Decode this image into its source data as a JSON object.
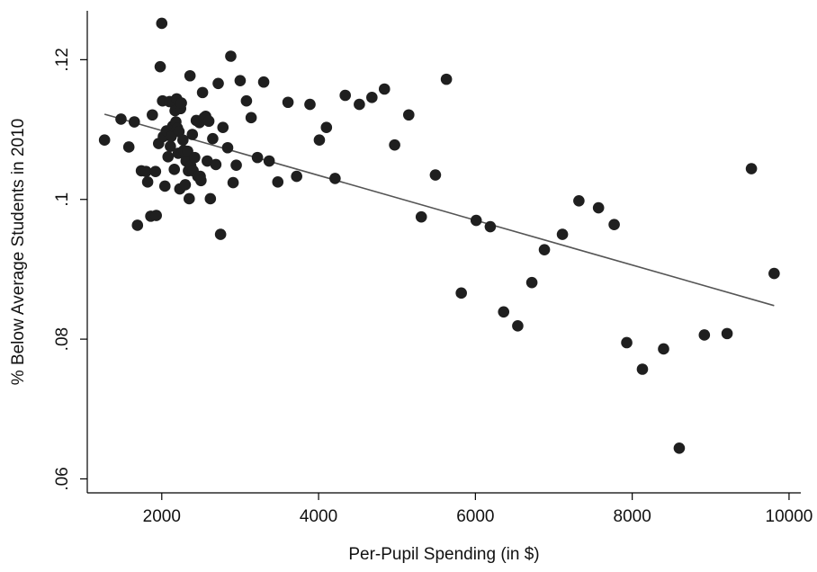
{
  "chart_data": {
    "type": "scatter",
    "title": "",
    "xlabel": "Per-Pupil Spending (in $)",
    "ylabel": "% Below Average Students in 2010",
    "xlim": [
      1050,
      10150
    ],
    "ylim": [
      0.058,
      0.127
    ],
    "x_ticks": [
      2000,
      4000,
      6000,
      8000,
      10000
    ],
    "x_tick_labels": [
      "2000",
      "4000",
      "6000",
      "8000",
      "10000"
    ],
    "y_ticks": [
      0.06,
      0.08,
      0.1,
      0.12
    ],
    "y_tick_labels": [
      ".06",
      ".08",
      ".1",
      ".12"
    ],
    "grid": false,
    "legend": "none",
    "marker_color": "#1f1f1f",
    "line_color": "#555555",
    "series": [
      {
        "type": "scatter",
        "points": [
          [
            1270,
            0.1085
          ],
          [
            1480,
            0.1115
          ],
          [
            1580,
            0.1075
          ],
          [
            1650,
            0.1111
          ],
          [
            1690,
            0.0963
          ],
          [
            1740,
            0.1041
          ],
          [
            1800,
            0.104
          ],
          [
            1820,
            0.1025
          ],
          [
            1860,
            0.0976
          ],
          [
            1880,
            0.1121
          ],
          [
            1920,
            0.104
          ],
          [
            1930,
            0.0977
          ],
          [
            1960,
            0.108
          ],
          [
            1980,
            0.119
          ],
          [
            2000,
            0.1252
          ],
          [
            2010,
            0.1141
          ],
          [
            2020,
            0.109
          ],
          [
            2040,
            0.1019
          ],
          [
            2060,
            0.1098
          ],
          [
            2080,
            0.1061
          ],
          [
            2100,
            0.114
          ],
          [
            2110,
            0.1076
          ],
          [
            2120,
            0.109
          ],
          [
            2140,
            0.1105
          ],
          [
            2150,
            0.1138
          ],
          [
            2160,
            0.1043
          ],
          [
            2170,
            0.1127
          ],
          [
            2180,
            0.1111
          ],
          [
            2190,
            0.1144
          ],
          [
            2200,
            0.1102
          ],
          [
            2210,
            0.1066
          ],
          [
            2220,
            0.1097
          ],
          [
            2230,
            0.1015
          ],
          [
            2240,
            0.113
          ],
          [
            2250,
            0.1138
          ],
          [
            2260,
            0.1067
          ],
          [
            2270,
            0.1085
          ],
          [
            2280,
            0.107
          ],
          [
            2300,
            0.1021
          ],
          [
            2310,
            0.1055
          ],
          [
            2330,
            0.1069
          ],
          [
            2340,
            0.1041
          ],
          [
            2350,
            0.1001
          ],
          [
            2360,
            0.1177
          ],
          [
            2370,
            0.1048
          ],
          [
            2390,
            0.1093
          ],
          [
            2400,
            0.1041
          ],
          [
            2420,
            0.106
          ],
          [
            2440,
            0.1113
          ],
          [
            2460,
            0.1033
          ],
          [
            2480,
            0.111
          ],
          [
            2490,
            0.1033
          ],
          [
            2500,
            0.1027
          ],
          [
            2520,
            0.1153
          ],
          [
            2540,
            0.1117
          ],
          [
            2560,
            0.1119
          ],
          [
            2580,
            0.1055
          ],
          [
            2600,
            0.1112
          ],
          [
            2620,
            0.1001
          ],
          [
            2650,
            0.1087
          ],
          [
            2690,
            0.105
          ],
          [
            2720,
            0.1166
          ],
          [
            2750,
            0.095
          ],
          [
            2780,
            0.1103
          ],
          [
            2840,
            0.1074
          ],
          [
            2880,
            0.1205
          ],
          [
            2910,
            0.1024
          ],
          [
            2950,
            0.1049
          ],
          [
            3000,
            0.117
          ],
          [
            3080,
            0.1141
          ],
          [
            3140,
            0.1117
          ],
          [
            3220,
            0.106
          ],
          [
            3300,
            0.1168
          ],
          [
            3370,
            0.1055
          ],
          [
            3480,
            0.1025
          ],
          [
            3610,
            0.1139
          ],
          [
            3720,
            0.1033
          ],
          [
            3890,
            0.1136
          ],
          [
            4010,
            0.1085
          ],
          [
            4100,
            0.1103
          ],
          [
            4210,
            0.103
          ],
          [
            4340,
            0.1149
          ],
          [
            4520,
            0.1136
          ],
          [
            4680,
            0.1146
          ],
          [
            4840,
            0.1158
          ],
          [
            4970,
            0.1078
          ],
          [
            5150,
            0.1121
          ],
          [
            5310,
            0.0975
          ],
          [
            5490,
            0.1035
          ],
          [
            5630,
            0.1172
          ],
          [
            5820,
            0.0866
          ],
          [
            6010,
            0.097
          ],
          [
            6190,
            0.0961
          ],
          [
            6360,
            0.0839
          ],
          [
            6540,
            0.0819
          ],
          [
            6720,
            0.0881
          ],
          [
            6880,
            0.0928
          ],
          [
            7110,
            0.095
          ],
          [
            7320,
            0.0998
          ],
          [
            7570,
            0.0988
          ],
          [
            7770,
            0.0964
          ],
          [
            7930,
            0.0795
          ],
          [
            8130,
            0.0757
          ],
          [
            8400,
            0.0786
          ],
          [
            8600,
            0.0644
          ],
          [
            8920,
            0.0806
          ],
          [
            9210,
            0.0808
          ],
          [
            9520,
            0.1044
          ],
          [
            9810,
            0.0894
          ]
        ]
      },
      {
        "type": "line",
        "points": [
          [
            1270,
            0.1122
          ],
          [
            9810,
            0.0848
          ]
        ]
      }
    ]
  }
}
